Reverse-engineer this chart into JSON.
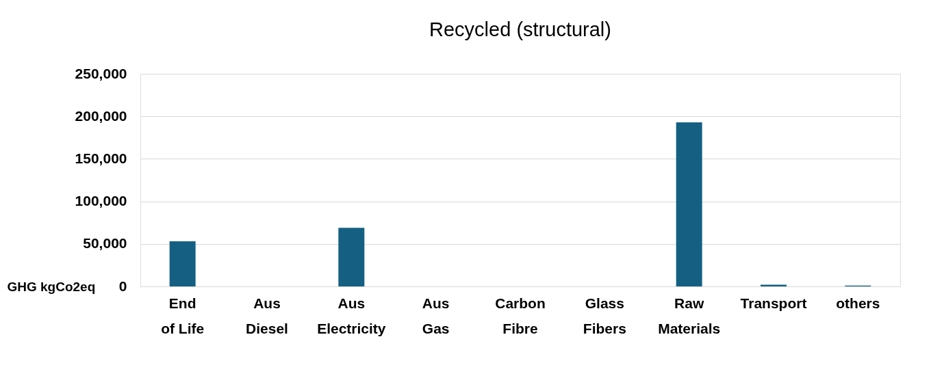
{
  "chart_data": {
    "type": "bar",
    "title": "Recycled (structural)",
    "ylabel": "GHG kgCo2eq",
    "categories": [
      "End of Life",
      "Aus Diesel",
      "Aus Electricity",
      "Aus Gas",
      "Carbon Fibre",
      "Glass Fibers",
      "Raw Materials",
      "Transport",
      "others"
    ],
    "values": [
      53000,
      0,
      69000,
      0,
      0,
      0,
      193000,
      2000,
      1000
    ],
    "color": "#156082",
    "ylim": [
      0,
      250000
    ],
    "yticks": [
      0,
      {
        "value": 50000,
        "label": "50,000"
      },
      {
        "value": 100000,
        "label": "100,000"
      },
      {
        "value": 150000,
        "label": "150,000"
      },
      {
        "value": 200000,
        "label": "200,000"
      },
      {
        "value": 250000,
        "label": "250,000"
      }
    ],
    "grid": "y"
  }
}
